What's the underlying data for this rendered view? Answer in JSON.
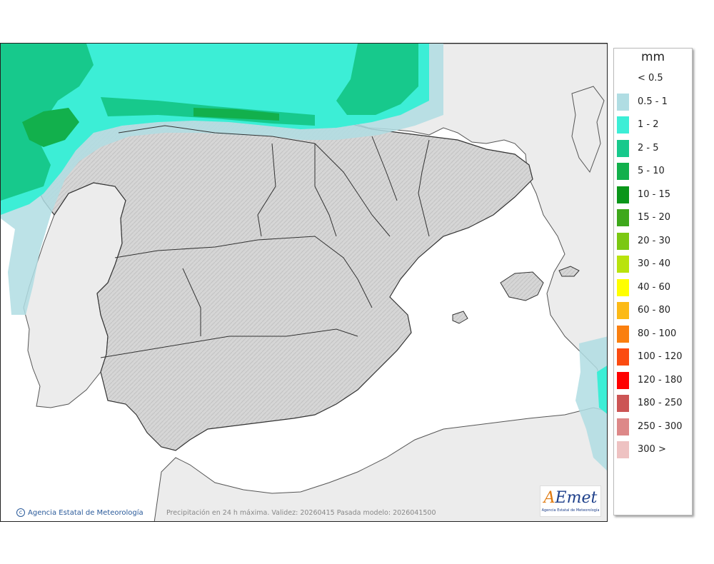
{
  "credit": "Agencia Estatal de Meteorología",
  "caption": "Precipitación en 24 h máxima. Validez: 20260415 Pasada modelo: 2026041500",
  "logo": {
    "word_a": "A",
    "word_rest": "Emet",
    "subtitle": "Agencia Estatal de Meteorología"
  },
  "legend": {
    "unit": "mm",
    "items": [
      {
        "label": "< 0.5",
        "color": ""
      },
      {
        "label": "0.5 - 1",
        "color": "#b0dde3"
      },
      {
        "label": "1 - 2",
        "color": "#3ceed6"
      },
      {
        "label": "2 - 5",
        "color": "#17c98c"
      },
      {
        "label": "5 - 10",
        "color": "#12b04c"
      },
      {
        "label": "10 - 15",
        "color": "#0a961a"
      },
      {
        "label": "15 - 20",
        "color": "#3ea81b"
      },
      {
        "label": "20 - 30",
        "color": "#7bc812"
      },
      {
        "label": "30 - 40",
        "color": "#b9e30d"
      },
      {
        "label": "40 - 60",
        "color": "#ffff00"
      },
      {
        "label": "60 - 80",
        "color": "#fcba16"
      },
      {
        "label": "80 - 100",
        "color": "#fa7f0f"
      },
      {
        "label": "100 - 120",
        "color": "#fb4b10"
      },
      {
        "label": "120 - 180",
        "color": "#ff0000"
      },
      {
        "label": "180 - 250",
        "color": "#cc5555"
      },
      {
        "label": "250 - 300",
        "color": "#dd8888"
      },
      {
        "label": "300 >",
        "color": "#eec2c2"
      }
    ]
  },
  "colors": {
    "land": "#d8d8d8",
    "foreign_land": "#ececec",
    "sea": "#ffffff",
    "border": "#333333"
  }
}
